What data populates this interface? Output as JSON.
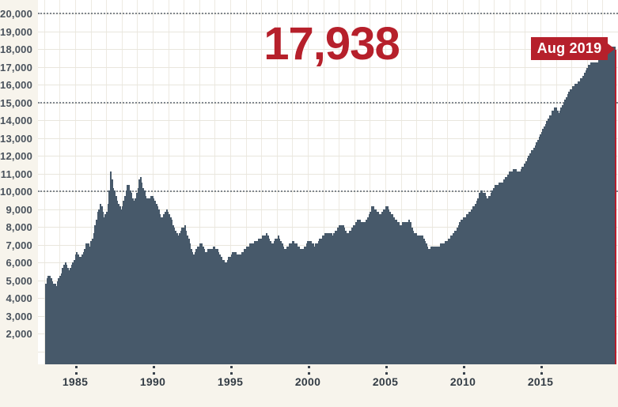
{
  "callout": {
    "value": "17,938",
    "flag_label": "Aug 2019"
  },
  "colors": {
    "bar": "#47596a",
    "highlight_red": "#b91f2c",
    "accent_red": "#b6202b",
    "plot_bg": "#ffffff",
    "canvas_bg": "#f7f4ec",
    "grid_faint": "#e9e6dd",
    "grid_dotted": "#5a646e",
    "axis_text": "#3a434d"
  },
  "chart_data": {
    "type": "bar",
    "title": "",
    "interval": "monthly",
    "start_month": "1983-01",
    "end_month": "2019-08",
    "ylim": [
      0,
      20000
    ],
    "grid": "on",
    "y_tick_values": [
      2000,
      3000,
      4000,
      5000,
      6000,
      7000,
      8000,
      9000,
      10000,
      11000,
      12000,
      13000,
      14000,
      15000,
      16000,
      17000,
      18000,
      19000,
      20000
    ],
    "y_tick_labels": [
      "2,000",
      "3,000",
      "4,000",
      "5,000",
      "6,000",
      "7,000",
      "8,000",
      "9,000",
      "10,000",
      "11,000",
      "12,000",
      "13,000",
      "14,000",
      "15,000",
      "16,000",
      "17,000",
      "18,000",
      "19,000",
      "20,000"
    ],
    "dotted_gridlines_at": [
      10000,
      15000,
      20000
    ],
    "x_tick_years": [
      1985,
      1990,
      1995,
      2000,
      2005,
      2010,
      2015
    ],
    "x_tick_labels": [
      "1985",
      "1990",
      "1995",
      "2000",
      "2005",
      "2010",
      "2015"
    ],
    "final_point": {
      "label": "Aug 2019",
      "value": 17938,
      "highlighted": true
    },
    "series_anchors": [
      [
        1983.0,
        4500
      ],
      [
        1983.1,
        5150
      ],
      [
        1983.3,
        5250
      ],
      [
        1983.5,
        4850
      ],
      [
        1983.7,
        4700
      ],
      [
        1983.95,
        5200
      ],
      [
        1984.15,
        5750
      ],
      [
        1984.3,
        6000
      ],
      [
        1984.5,
        5550
      ],
      [
        1984.7,
        5900
      ],
      [
        1984.9,
        6200
      ],
      [
        1985.0,
        6650
      ],
      [
        1985.25,
        6250
      ],
      [
        1985.45,
        6550
      ],
      [
        1985.65,
        7100
      ],
      [
        1985.9,
        6950
      ],
      [
        1986.1,
        7600
      ],
      [
        1986.35,
        8700
      ],
      [
        1986.55,
        9300
      ],
      [
        1986.8,
        8600
      ],
      [
        1987.0,
        8950
      ],
      [
        1987.1,
        9700
      ],
      [
        1987.2,
        11150
      ],
      [
        1987.35,
        10250
      ],
      [
        1987.5,
        9950
      ],
      [
        1987.65,
        9400
      ],
      [
        1987.9,
        8950
      ],
      [
        1988.1,
        9700
      ],
      [
        1988.35,
        10450
      ],
      [
        1988.55,
        9800
      ],
      [
        1988.75,
        9350
      ],
      [
        1989.1,
        10900
      ],
      [
        1989.4,
        9900
      ],
      [
        1989.6,
        9500
      ],
      [
        1989.9,
        9800
      ],
      [
        1990.2,
        9150
      ],
      [
        1990.5,
        8450
      ],
      [
        1990.8,
        9000
      ],
      [
        1991.1,
        8400
      ],
      [
        1991.5,
        7500
      ],
      [
        1991.95,
        8100
      ],
      [
        1992.5,
        6400
      ],
      [
        1993.0,
        7150
      ],
      [
        1993.3,
        6600
      ],
      [
        1993.9,
        6900
      ],
      [
        1994.3,
        6300
      ],
      [
        1994.6,
        6000
      ],
      [
        1995.1,
        6600
      ],
      [
        1995.5,
        6400
      ],
      [
        1996.1,
        7000
      ],
      [
        1996.5,
        7150
      ],
      [
        1997.2,
        7600
      ],
      [
        1997.55,
        7050
      ],
      [
        1998.0,
        7470
      ],
      [
        1998.4,
        6670
      ],
      [
        1998.9,
        7240
      ],
      [
        1999.5,
        6670
      ],
      [
        1999.9,
        7240
      ],
      [
        2000.3,
        6950
      ],
      [
        2001.0,
        7690
      ],
      [
        2001.5,
        7560
      ],
      [
        2002.0,
        8220
      ],
      [
        2002.4,
        7600
      ],
      [
        2003.1,
        8440
      ],
      [
        2003.5,
        8200
      ],
      [
        2004.0,
        9160
      ],
      [
        2004.5,
        8710
      ],
      [
        2004.9,
        9160
      ],
      [
        2005.5,
        8400
      ],
      [
        2005.8,
        8130
      ],
      [
        2006.4,
        8360
      ],
      [
        2006.7,
        7600
      ],
      [
        2007.2,
        7470
      ],
      [
        2007.6,
        6800
      ],
      [
        2008.2,
        6900
      ],
      [
        2008.6,
        7100
      ],
      [
        2009.2,
        7600
      ],
      [
        2009.7,
        8360
      ],
      [
        2010.3,
        8930
      ],
      [
        2010.6,
        9240
      ],
      [
        2011.0,
        10130
      ],
      [
        2011.4,
        9600
      ],
      [
        2011.9,
        10360
      ],
      [
        2012.4,
        10580
      ],
      [
        2012.8,
        11070
      ],
      [
        2013.1,
        11250
      ],
      [
        2013.45,
        11050
      ],
      [
        2013.9,
        11780
      ],
      [
        2014.4,
        12530
      ],
      [
        2014.9,
        13420
      ],
      [
        2015.4,
        14220
      ],
      [
        2015.7,
        14760
      ],
      [
        2015.95,
        14440
      ],
      [
        2016.3,
        14980
      ],
      [
        2016.6,
        15560
      ],
      [
        2017.0,
        16000
      ],
      [
        2017.4,
        16310
      ],
      [
        2017.8,
        16980
      ],
      [
        2018.1,
        17330
      ],
      [
        2018.45,
        17250
      ],
      [
        2018.8,
        17780
      ],
      [
        2019.2,
        18050
      ],
      [
        2019.5,
        18200
      ],
      [
        2019.667,
        17938
      ]
    ]
  }
}
